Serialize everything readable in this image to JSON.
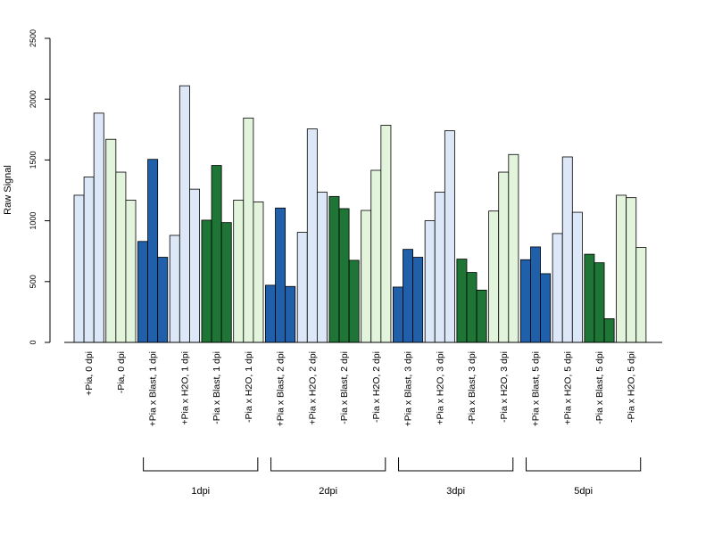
{
  "chart_data": {
    "type": "bar",
    "ylabel": "Raw Signal",
    "ylim": [
      0,
      2500
    ],
    "yticks": [
      "0",
      "500",
      "1000",
      "1500",
      "2000",
      "2500"
    ],
    "colors": {
      "+Pia, 0 dpi": "#dce8f7",
      "-Pia, 0 dpi": "#e2f5dc",
      "+Pia x Blast": "#2060ab",
      "+Pia x H2O": "#dce8f7",
      "-Pia x Blast": "#1e7535",
      "-Pia x H2O": "#e2f5dc"
    },
    "categories": [
      {
        "label": "+Pia, 0 dpi",
        "values": [
          1210,
          1360,
          1885
        ],
        "color_key": "+Pia, 0 dpi"
      },
      {
        "label": "-Pia, 0 dpi",
        "values": [
          1670,
          1400,
          1170
        ],
        "color_key": "-Pia, 0 dpi"
      },
      {
        "label": "+Pia x Blast, 1 dpi",
        "values": [
          830,
          1505,
          700
        ],
        "color_key": "+Pia x Blast"
      },
      {
        "label": "+Pia x H2O, 1 dpi",
        "values": [
          880,
          2110,
          1260
        ],
        "color_key": "+Pia x H2O"
      },
      {
        "label": "-Pia x Blast, 1 dpi",
        "values": [
          1005,
          1455,
          985
        ],
        "color_key": "-Pia x Blast"
      },
      {
        "label": "-Pia x H2O, 1 dpi",
        "values": [
          1170,
          1845,
          1155
        ],
        "color_key": "-Pia x H2O"
      },
      {
        "label": "+Pia x Blast, 2 dpi",
        "values": [
          470,
          1105,
          460
        ],
        "color_key": "+Pia x Blast"
      },
      {
        "label": "+Pia x H2O, 2 dpi",
        "values": [
          905,
          1755,
          1235
        ],
        "color_key": "+Pia x H2O"
      },
      {
        "label": "-Pia x Blast, 2 dpi",
        "values": [
          1200,
          1100,
          675
        ],
        "color_key": "-Pia x Blast"
      },
      {
        "label": "-Pia x H2O, 2 dpi",
        "values": [
          1085,
          1415,
          1785
        ],
        "color_key": "-Pia x H2O"
      },
      {
        "label": "+Pia x Blast, 3 dpi",
        "values": [
          455,
          765,
          700
        ],
        "color_key": "+Pia x Blast"
      },
      {
        "label": "+Pia x H2O, 3 dpi",
        "values": [
          1000,
          1235,
          1740
        ],
        "color_key": "+Pia x H2O"
      },
      {
        "label": "-Pia x Blast, 3 dpi",
        "values": [
          685,
          575,
          430
        ],
        "color_key": "-Pia x Blast"
      },
      {
        "label": "-Pia x H2O, 3 dpi",
        "values": [
          1080,
          1400,
          1545
        ],
        "color_key": "-Pia x H2O"
      },
      {
        "label": "+Pia x Blast, 5 dpi",
        "values": [
          680,
          785,
          565
        ],
        "color_key": "+Pia x Blast"
      },
      {
        "label": "+Pia x H2O, 5 dpi",
        "values": [
          895,
          1525,
          1070
        ],
        "color_key": "+Pia x H2O"
      },
      {
        "label": "-Pia x Blast, 5 dpi",
        "values": [
          725,
          655,
          195
        ],
        "color_key": "-Pia x Blast"
      },
      {
        "label": "-Pia x H2O, 5 dpi",
        "values": [
          1210,
          1190,
          780
        ],
        "color_key": "-Pia x H2O"
      }
    ],
    "groups": [
      {
        "label": "1dpi",
        "from": 2,
        "to": 5
      },
      {
        "label": "2dpi",
        "from": 6,
        "to": 9
      },
      {
        "label": "3dpi",
        "from": 10,
        "to": 13
      },
      {
        "label": "5dpi",
        "from": 14,
        "to": 17
      }
    ]
  }
}
